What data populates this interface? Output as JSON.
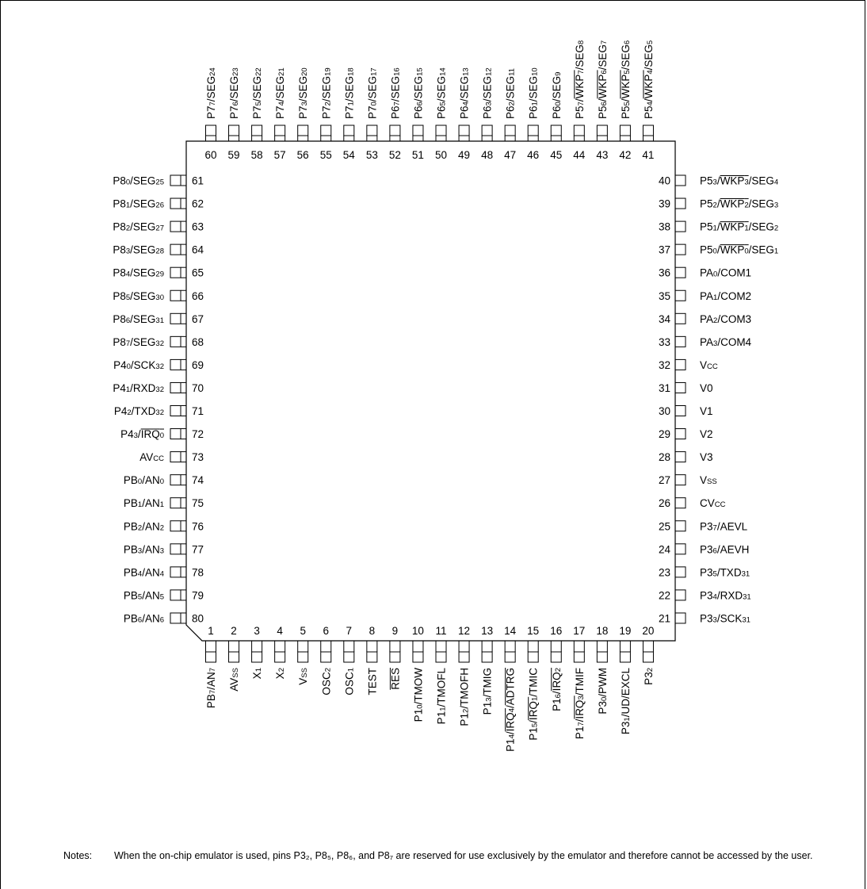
{
  "pins": {
    "top": [
      {
        "num": "60",
        "label": "P7<sub>7</sub>/SEG<sub>24</sub>"
      },
      {
        "num": "59",
        "label": "P7<sub>6</sub>/SEG<sub>23</sub>"
      },
      {
        "num": "58",
        "label": "P7<sub>5</sub>/SEG<sub>22</sub>"
      },
      {
        "num": "57",
        "label": "P7<sub>4</sub>/SEG<sub>21</sub>"
      },
      {
        "num": "56",
        "label": "P7<sub>3</sub>/SEG<sub>20</sub>"
      },
      {
        "num": "55",
        "label": "P7<sub>2</sub>/SEG<sub>19</sub>"
      },
      {
        "num": "54",
        "label": "P7<sub>1</sub>/SEG<sub>18</sub>"
      },
      {
        "num": "53",
        "label": "P7<sub>0</sub>/SEG<sub>17</sub>"
      },
      {
        "num": "52",
        "label": "P6<sub>7</sub>/SEG<sub>16</sub>"
      },
      {
        "num": "51",
        "label": "P6<sub>6</sub>/SEG<sub>15</sub>"
      },
      {
        "num": "50",
        "label": "P6<sub>5</sub>/SEG<sub>14</sub>"
      },
      {
        "num": "49",
        "label": "P6<sub>4</sub>/SEG<sub>13</sub>"
      },
      {
        "num": "48",
        "label": "P6<sub>3</sub>/SEG<sub>12</sub>"
      },
      {
        "num": "47",
        "label": "P6<sub>2</sub>/SEG<sub>11</sub>"
      },
      {
        "num": "46",
        "label": "P6<sub>1</sub>/SEG<sub>10</sub>"
      },
      {
        "num": "45",
        "label": "P6<sub>0</sub>/SEG<sub>9</sub>"
      },
      {
        "num": "44",
        "label": "P5<sub>7</sub>/<ov>WKP<sub>7</sub></ov>/SEG<sub>8</sub>"
      },
      {
        "num": "43",
        "label": "P5<sub>6</sub>/<ov>WKP<sub>6</sub></ov>/SEG<sub>7</sub>"
      },
      {
        "num": "42",
        "label": "P5<sub>5</sub>/<ov>WKP<sub>5</sub></ov>/SEG<sub>6</sub>"
      },
      {
        "num": "41",
        "label": "P5<sub>4</sub>/<ov>WKP<sub>4</sub></ov>/SEG<sub>5</sub>"
      }
    ],
    "left": [
      {
        "num": "61",
        "label": "P8<sub>0</sub>/SEG<sub>25</sub>"
      },
      {
        "num": "62",
        "label": "P8<sub>1</sub>/SEG<sub>26</sub>"
      },
      {
        "num": "63",
        "label": "P8<sub>2</sub>/SEG<sub>27</sub>"
      },
      {
        "num": "64",
        "label": "P8<sub>3</sub>/SEG<sub>28</sub>"
      },
      {
        "num": "65",
        "label": "P8<sub>4</sub>/SEG<sub>29</sub>"
      },
      {
        "num": "66",
        "label": "P8<sub>5</sub>/SEG<sub>30</sub>"
      },
      {
        "num": "67",
        "label": "P8<sub>6</sub>/SEG<sub>31</sub>"
      },
      {
        "num": "68",
        "label": "P8<sub>7</sub>/SEG<sub>32</sub>"
      },
      {
        "num": "69",
        "label": "P4<sub>0</sub>/SCK<sub>32</sub>"
      },
      {
        "num": "70",
        "label": "P4<sub>1</sub>/RXD<sub>32</sub>"
      },
      {
        "num": "71",
        "label": "P4<sub>2</sub>/TXD<sub>32</sub>"
      },
      {
        "num": "72",
        "label": "P4<sub>3</sub>/<ov>IRQ<sub>0</sub></ov>"
      },
      {
        "num": "73",
        "label": "AV<sub>CC</sub>"
      },
      {
        "num": "74",
        "label": "PB<sub>0</sub>/AN<sub>0</sub>"
      },
      {
        "num": "75",
        "label": "PB<sub>1</sub>/AN<sub>1</sub>"
      },
      {
        "num": "76",
        "label": "PB<sub>2</sub>/AN<sub>2</sub>"
      },
      {
        "num": "77",
        "label": "PB<sub>3</sub>/AN<sub>3</sub>"
      },
      {
        "num": "78",
        "label": "PB<sub>4</sub>/AN<sub>4</sub>"
      },
      {
        "num": "79",
        "label": "PB<sub>5</sub>/AN<sub>5</sub>"
      },
      {
        "num": "80",
        "label": "PB<sub>6</sub>/AN<sub>6</sub>"
      }
    ],
    "right": [
      {
        "num": "40",
        "label": "P5<sub>3</sub>/<ov>WKP<sub>3</sub></ov>/SEG<sub>4</sub>"
      },
      {
        "num": "39",
        "label": "P5<sub>2</sub>/<ov>WKP<sub>2</sub></ov>/SEG<sub>3</sub>"
      },
      {
        "num": "38",
        "label": "P5<sub>1</sub>/<ov>WKP<sub>1</sub></ov>/SEG<sub>2</sub>"
      },
      {
        "num": "37",
        "label": "P5<sub>0</sub>/<ov>WKP<sub>0</sub></ov>/SEG<sub>1</sub>"
      },
      {
        "num": "36",
        "label": "PA<sub>0</sub>/COM1"
      },
      {
        "num": "35",
        "label": "PA<sub>1</sub>/COM2"
      },
      {
        "num": "34",
        "label": "PA<sub>2</sub>/COM3"
      },
      {
        "num": "33",
        "label": "PA<sub>3</sub>/COM4"
      },
      {
        "num": "32",
        "label": "V<sub>CC</sub>"
      },
      {
        "num": "31",
        "label": "V0"
      },
      {
        "num": "30",
        "label": "V1"
      },
      {
        "num": "29",
        "label": "V2"
      },
      {
        "num": "28",
        "label": "V3"
      },
      {
        "num": "27",
        "label": "V<sub>SS</sub>"
      },
      {
        "num": "26",
        "label": "CV<sub>CC</sub>"
      },
      {
        "num": "25",
        "label": "P3<sub>7</sub>/AEVL"
      },
      {
        "num": "24",
        "label": "P3<sub>6</sub>/AEVH"
      },
      {
        "num": "23",
        "label": "P3<sub>5</sub>/TXD<sub>31</sub>"
      },
      {
        "num": "22",
        "label": "P3<sub>4</sub>/RXD<sub>31</sub>"
      },
      {
        "num": "21",
        "label": "P3<sub>3</sub>/SCK<sub>31</sub>"
      }
    ],
    "bottom": [
      {
        "num": "1",
        "label": "PB<sub>7</sub>/AN<sub>7</sub>"
      },
      {
        "num": "2",
        "label": "AV<sub>SS</sub>"
      },
      {
        "num": "3",
        "label": "X<sub>1</sub>"
      },
      {
        "num": "4",
        "label": "X<sub>2</sub>"
      },
      {
        "num": "5",
        "label": "V<sub>SS</sub>"
      },
      {
        "num": "6",
        "label": "OSC<sub>2</sub>"
      },
      {
        "num": "7",
        "label": "OSC<sub>1</sub>"
      },
      {
        "num": "8",
        "label": "TEST"
      },
      {
        "num": "9",
        "label": "<ov>RES</ov>"
      },
      {
        "num": "10",
        "label": "P1<sub>0</sub>/TMOW"
      },
      {
        "num": "11",
        "label": "P1<sub>1</sub>/TMOFL"
      },
      {
        "num": "12",
        "label": "P1<sub>2</sub>/TMOFH"
      },
      {
        "num": "13",
        "label": "P1<sub>3</sub>/TMIG"
      },
      {
        "num": "14",
        "label": "P1<sub>4</sub>/<ov>IRQ<sub>4</sub></ov>/<ov>ADTRG</ov>"
      },
      {
        "num": "15",
        "label": "P1<sub>5</sub>/<ov>IRQ<sub>1</sub></ov>/TMIC"
      },
      {
        "num": "16",
        "label": "P1<sub>6</sub>/<ov>IRQ<sub>2</sub></ov>"
      },
      {
        "num": "17",
        "label": "P1<sub>7</sub>/<ov>IRQ<sub>3</sub></ov>/TMIF"
      },
      {
        "num": "18",
        "label": "P3<sub>0</sub>/PWM"
      },
      {
        "num": "19",
        "label": "P3<sub>1</sub>/UD/EXCL"
      },
      {
        "num": "20",
        "label": "P3<sub>2</sub>"
      }
    ]
  },
  "notes": {
    "label": "Notes:",
    "text": "When the on-chip emulator is used, pins P3₂, P8₅, P8₆, and P8₇ are reserved for use exclusively by the emulator and therefore cannot be accessed by the user."
  }
}
